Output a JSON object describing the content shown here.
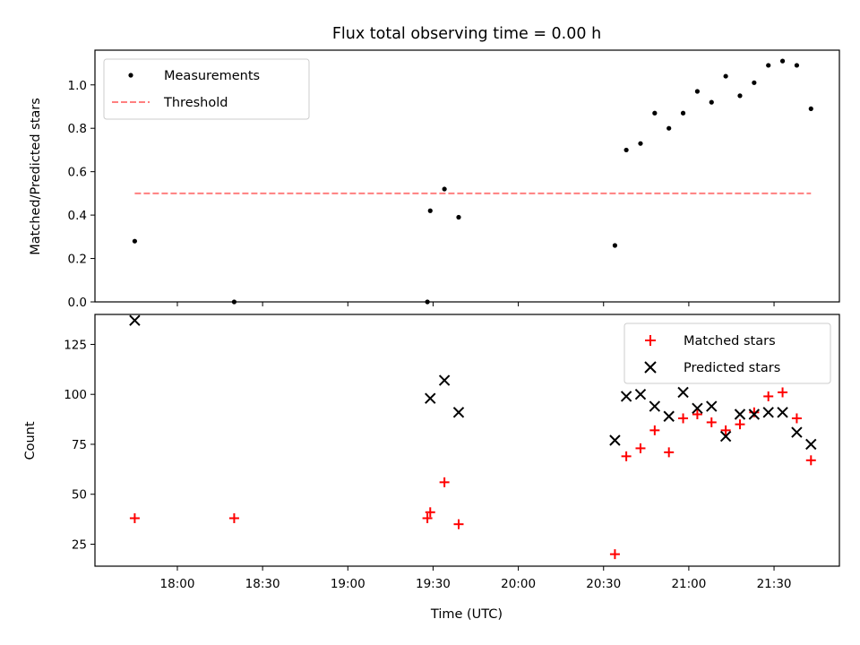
{
  "chart_data": [
    {
      "type": "scatter",
      "title": "Flux total observing time = 0.00 h",
      "ylabel": "Matched/Predicted stars",
      "xlabel": "",
      "ylim": [
        0,
        1.16
      ],
      "yticks": [
        "0.0",
        "0.2",
        "0.4",
        "0.6",
        "0.8",
        "1.0"
      ],
      "grid": false,
      "legend_placement": "top-left",
      "series": [
        {
          "name": "Measurements",
          "color": "#000000",
          "marker": "dot",
          "x": [
            "17:45",
            "18:20",
            "19:28",
            "19:29",
            "19:34",
            "19:39",
            "20:34",
            "20:38",
            "20:43",
            "20:48",
            "20:53",
            "20:58",
            "21:03",
            "21:08",
            "21:13",
            "21:18",
            "21:23",
            "21:28",
            "21:33",
            "21:38",
            "21:43"
          ],
          "y": [
            0.28,
            0.0,
            0.0,
            0.42,
            0.52,
            0.39,
            0.26,
            0.7,
            0.73,
            0.87,
            0.8,
            0.87,
            0.97,
            0.92,
            1.04,
            0.95,
            1.01,
            1.09,
            1.11,
            1.09,
            0.89
          ]
        },
        {
          "name": "Threshold",
          "color": "#ff7f7f",
          "style": "dashed",
          "x": [
            "17:45",
            "21:43"
          ],
          "y": [
            0.5,
            0.5
          ]
        }
      ]
    },
    {
      "type": "scatter",
      "ylabel": "Count",
      "xlabel": "Time (UTC)",
      "ylim": [
        14,
        140
      ],
      "yticks": [
        "25",
        "50",
        "75",
        "100",
        "125"
      ],
      "xticks": [
        "18:00",
        "18:30",
        "19:00",
        "19:30",
        "20:00",
        "20:30",
        "21:00",
        "21:30"
      ],
      "grid": false,
      "legend_placement": "top-right",
      "series": [
        {
          "name": "Matched stars",
          "color": "#ff0000",
          "marker": "plus",
          "x": [
            "17:45",
            "18:20",
            "19:28",
            "19:29",
            "19:34",
            "19:39",
            "20:34",
            "20:38",
            "20:43",
            "20:48",
            "20:53",
            "20:58",
            "21:03",
            "21:08",
            "21:13",
            "21:18",
            "21:23",
            "21:28",
            "21:33",
            "21:38",
            "21:43"
          ],
          "y": [
            38,
            38,
            38,
            41,
            56,
            35,
            20,
            69,
            73,
            82,
            71,
            88,
            90,
            86,
            82,
            85,
            91,
            99,
            101,
            88,
            67
          ]
        },
        {
          "name": "Predicted stars",
          "color": "#000000",
          "marker": "x",
          "x": [
            "17:45",
            "19:29",
            "19:34",
            "19:39",
            "20:34",
            "20:38",
            "20:43",
            "20:48",
            "20:53",
            "20:58",
            "21:03",
            "21:08",
            "21:13",
            "21:18",
            "21:23",
            "21:28",
            "21:33",
            "21:38",
            "21:43"
          ],
          "y": [
            137,
            98,
            107,
            91,
            77,
            99,
            100,
            94,
            89,
            101,
            93,
            94,
            79,
            90,
            90,
            91,
            91,
            81,
            75
          ]
        }
      ]
    }
  ]
}
